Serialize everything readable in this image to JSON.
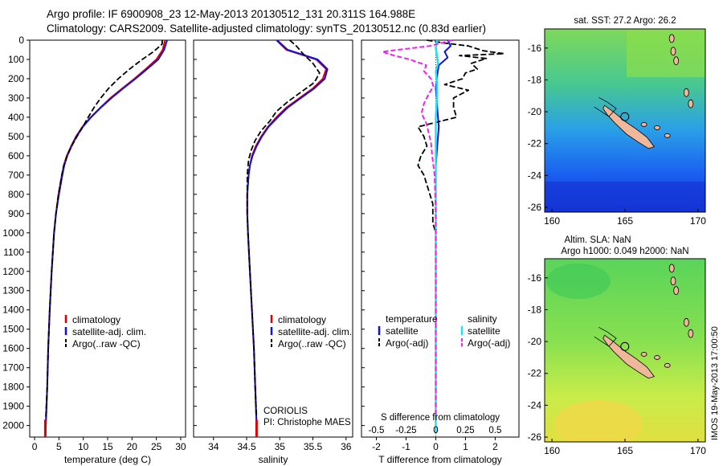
{
  "header": {
    "title_line1": "Argo profile: IF 6900908_23 12-May-2013 20130512_131 20.311S 164.988E",
    "title_line2": "Climatology: CARS2009. Satellite-adjusted climatology: synTS_20130512.nc (0.83d earlier)"
  },
  "colors": {
    "climatology": "#dd0000",
    "satellite": "#1010e0",
    "argo": "#000000",
    "sal_satellite": "#22e0f0",
    "sal_argo": "#ee22ee"
  },
  "depth_axis": {
    "ticks": [
      0,
      100,
      200,
      300,
      400,
      500,
      600,
      700,
      800,
      900,
      1000,
      1100,
      1200,
      1300,
      1400,
      1500,
      1600,
      1700,
      1800,
      1900,
      2000
    ],
    "range": [
      0,
      2060
    ]
  },
  "legend": {
    "climatology": "climatology",
    "satellite_adj": "satellite-adj. clim.",
    "argo": "Argo(..raw -QC)",
    "diff_temperature": "temperature",
    "diff_salinity": "salinity",
    "diff_satellite": "satellite",
    "diff_argo": "Argo(-adj)"
  },
  "credits": {
    "center": "CORIOLIS",
    "pi": "PI: Christophe MAES"
  },
  "maps": {
    "sst_title": "sat. SST: 27.2 Argo: 26.2",
    "sla_title_line1": "Altim. SLA: NaN",
    "sla_title_line2": "Argo h1000: 0.049 h2000: NaN",
    "lat_ticks": [
      -16,
      -18,
      -20,
      -22,
      -24,
      -26
    ],
    "lon_ticks": [
      160,
      165,
      170
    ],
    "lon_range": [
      159.5,
      170.5
    ],
    "lat_range": [
      -26.3,
      -14.8
    ],
    "float_position": {
      "lon": 164.988,
      "lat": -20.311
    }
  },
  "footer_stamp": "IMOS 19-May-2013 17:00:50",
  "chart_data": [
    {
      "type": "line",
      "title": "",
      "xlabel": "temperature (deg C)",
      "ylabel": "",
      "xlim": [
        -1,
        31
      ],
      "xticks": [
        0,
        5,
        10,
        15,
        20,
        25,
        30
      ],
      "ylim": [
        2060,
        0
      ],
      "series": [
        {
          "name": "climatology",
          "depth": [
            0,
            50,
            100,
            150,
            200,
            250,
            300,
            350,
            400,
            450,
            500,
            550,
            600,
            650,
            700,
            800,
            900,
            1000,
            1200,
            1400,
            1600,
            1800,
            2000,
            2040
          ],
          "values": [
            26.8,
            26.3,
            25.0,
            22.8,
            20.5,
            18.0,
            15.6,
            13.5,
            11.5,
            9.8,
            8.5,
            7.5,
            6.6,
            6.0,
            5.6,
            4.9,
            4.4,
            4.0,
            3.5,
            3.1,
            2.8,
            2.6,
            2.3,
            2.2
          ]
        },
        {
          "name": "satellite-adj. clim.",
          "depth": [
            0,
            50,
            100,
            150,
            200,
            250,
            300,
            350,
            400,
            450,
            500,
            550,
            600,
            650,
            700,
            800,
            900,
            1000,
            1200,
            1400,
            1600,
            1800,
            2000,
            2040
          ],
          "values": [
            27.2,
            26.6,
            25.4,
            23.1,
            20.7,
            18.2,
            15.8,
            13.6,
            11.6,
            9.9,
            8.6,
            7.6,
            6.7,
            6.1,
            5.7,
            5.0,
            4.4,
            4.0,
            3.5,
            3.1,
            2.8,
            2.6,
            2.3,
            2.2
          ]
        },
        {
          "name": "Argo(..raw -QC)",
          "depth": [
            0,
            20,
            60,
            100,
            150,
            200,
            250,
            300,
            350,
            400,
            450,
            500,
            550,
            600,
            650,
            700,
            800,
            900,
            1000,
            1200,
            1400,
            1600,
            1800,
            1960
          ],
          "values": [
            26.2,
            26.2,
            24.4,
            22.1,
            19.5,
            17.2,
            15.2,
            13.6,
            12.2,
            11.0,
            9.9,
            8.7,
            7.6,
            6.7,
            6.0,
            5.6,
            4.9,
            4.4,
            4.0,
            3.5,
            3.1,
            2.8,
            2.6,
            2.3
          ]
        }
      ]
    },
    {
      "type": "line",
      "title": "",
      "xlabel": "salinity",
      "ylabel": "",
      "xlim": [
        33.7,
        36.1
      ],
      "xticks": [
        34,
        34.5,
        35,
        35.5,
        36
      ],
      "ylim": [
        2060,
        0
      ],
      "series": [
        {
          "name": "climatology",
          "depth": [
            0,
            50,
            100,
            150,
            200,
            250,
            300,
            350,
            400,
            450,
            500,
            550,
            600,
            650,
            700,
            800,
            900,
            1000,
            1200,
            1400,
            1600,
            1800,
            2000,
            2040
          ],
          "values": [
            34.95,
            35.1,
            35.55,
            35.7,
            35.65,
            35.5,
            35.3,
            35.1,
            34.95,
            34.82,
            34.72,
            34.64,
            34.58,
            34.55,
            34.53,
            34.51,
            34.51,
            34.52,
            34.55,
            34.58,
            34.61,
            34.63,
            34.65,
            34.65
          ]
        },
        {
          "name": "satellite-adj. clim.",
          "depth": [
            0,
            50,
            100,
            150,
            200,
            250,
            300,
            350,
            400,
            450,
            500,
            550,
            600,
            650,
            700,
            800,
            900,
            1000,
            1200,
            1400,
            1600,
            1800,
            2000,
            2040
          ],
          "values": [
            34.96,
            35.12,
            35.57,
            35.72,
            35.68,
            35.52,
            35.32,
            35.12,
            34.97,
            34.83,
            34.73,
            34.65,
            34.59,
            34.55,
            34.53,
            34.51,
            34.51,
            34.52,
            34.55,
            34.58,
            34.61,
            34.63,
            34.65,
            34.65
          ]
        },
        {
          "name": "Argo(..raw -QC)",
          "depth": [
            0,
            30,
            70,
            120,
            170,
            220,
            270,
            320,
            370,
            420,
            470,
            520,
            570,
            620,
            700,
            800,
            900,
            1000,
            1200,
            1400,
            1600,
            1800,
            1960
          ],
          "values": [
            35.15,
            35.25,
            35.35,
            35.5,
            35.6,
            35.52,
            35.32,
            35.12,
            34.95,
            34.85,
            34.72,
            34.63,
            34.57,
            34.53,
            34.51,
            34.51,
            34.51,
            34.52,
            34.55,
            34.58,
            34.61,
            34.63,
            34.65
          ]
        }
      ]
    },
    {
      "type": "line",
      "title": "",
      "xlabel": "T difference from climatology",
      "xlabel_top": "S difference from climatology",
      "ylabel": "",
      "xlim": [
        -2.5,
        2.8
      ],
      "xticks": [
        -2,
        -1,
        0,
        1,
        2
      ],
      "xlim_top": [
        -0.625,
        0.7
      ],
      "xticks_top": [
        -0.5,
        -0.25,
        0,
        0.25,
        0.5
      ],
      "ylim": [
        2060,
        0
      ],
      "series": [
        {
          "name": "temperature satellite",
          "axis": "T",
          "depth": [
            0,
            30,
            60,
            90,
            130,
            180,
            250,
            350,
            450,
            550,
            650,
            750,
            900,
            1100,
            1300,
            1500,
            1700,
            1900,
            2040
          ],
          "values": [
            0.4,
            0.5,
            0.3,
            0.4,
            0.1,
            0.05,
            0.0,
            0.05,
            0.1,
            0.05,
            0.0,
            0.0,
            0.0,
            0.0,
            0.0,
            0.0,
            0.0,
            0.0,
            0.0
          ]
        },
        {
          "name": "temperature Argo(-adj)",
          "axis": "T",
          "depth": [
            0,
            15,
            30,
            55,
            70,
            80,
            95,
            120,
            150,
            170,
            200,
            230,
            260,
            300,
            350,
            400,
            450,
            500,
            550,
            600,
            650,
            700,
            750,
            800,
            850,
            900,
            950,
            1000,
            1100,
            1200,
            1300,
            1400,
            1500,
            1600,
            1700,
            1800,
            1960
          ],
          "values": [
            -0.3,
            0.3,
            1.1,
            1.6,
            2.3,
            0.8,
            1.7,
            1.2,
            1.4,
            1.0,
            0.9,
            0.3,
            1.1,
            0.6,
            0.6,
            0.7,
            -0.6,
            -0.4,
            -0.3,
            -0.5,
            -0.6,
            -0.4,
            -0.3,
            -0.2,
            -0.1,
            -0.1,
            -0.1,
            0.0,
            0.0,
            0.0,
            0.0,
            0.0,
            0.0,
            0.0,
            0.0,
            0.0,
            0.0
          ]
        },
        {
          "name": "salinity satellite",
          "axis": "S",
          "depth": [
            0,
            40,
            80,
            120,
            160,
            220,
            300,
            400,
            600,
            800,
            1000,
            1300,
            1600,
            1900,
            2040
          ],
          "values": [
            0.01,
            0.0,
            0.01,
            0.02,
            0.0,
            0.01,
            0.01,
            0.0,
            0.0,
            0.0,
            0.0,
            0.0,
            0.0,
            0.0,
            0.0
          ]
        },
        {
          "name": "salinity Argo(-adj)",
          "axis": "S",
          "depth": [
            0,
            30,
            60,
            80,
            100,
            130,
            160,
            200,
            240,
            280,
            330,
            380,
            430,
            480,
            530,
            600,
            700,
            900,
            1200,
            1500,
            1800,
            1960
          ],
          "values": [
            0.14,
            -0.05,
            -0.45,
            -0.35,
            -0.22,
            -0.08,
            -0.1,
            -0.04,
            -0.02,
            -0.06,
            -0.1,
            -0.12,
            -0.08,
            -0.06,
            -0.04,
            -0.03,
            -0.01,
            0.0,
            0.0,
            0.0,
            0.0,
            0.0
          ]
        }
      ]
    }
  ]
}
